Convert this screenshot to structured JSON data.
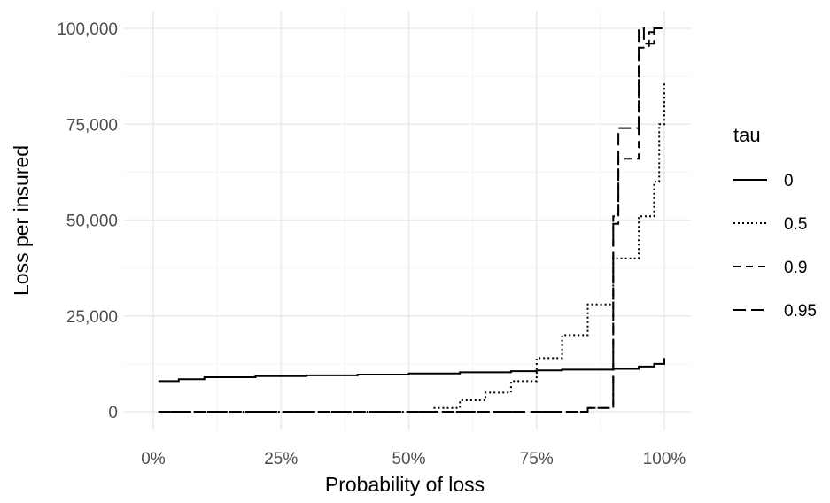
{
  "chart_data": {
    "type": "line",
    "xlabel": "Probability of loss",
    "ylabel": "Loss per insured",
    "x_ticks": [
      "0%",
      "25%",
      "50%",
      "75%",
      "100%"
    ],
    "x_tick_values": [
      0,
      0.25,
      0.5,
      0.75,
      1.0
    ],
    "y_ticks": [
      "0",
      "25,000",
      "50,000",
      "75,000",
      "100,000"
    ],
    "y_tick_values": [
      0,
      25000,
      50000,
      75000,
      100000
    ],
    "xlim": [
      0,
      1.0
    ],
    "ylim": [
      0,
      100000
    ],
    "grid": true,
    "step": true,
    "legend": {
      "title": "tau",
      "position": "right"
    },
    "series": [
      {
        "name": "0",
        "linetype": "solid",
        "x": [
          0.01,
          0.05,
          0.1,
          0.2,
          0.3,
          0.4,
          0.5,
          0.6,
          0.7,
          0.75,
          0.8,
          0.9,
          0.95,
          0.98,
          1.0
        ],
        "y": [
          8000,
          8500,
          9000,
          9300,
          9500,
          9700,
          10000,
          10300,
          10600,
          10800,
          11000,
          11200,
          11800,
          12500,
          14000
        ]
      },
      {
        "name": "0.5",
        "linetype": "dotted",
        "x": [
          0.01,
          0.55,
          0.6,
          0.65,
          0.7,
          0.75,
          0.8,
          0.85,
          0.9,
          0.95,
          0.98,
          0.99,
          1.0
        ],
        "y": [
          0,
          1000,
          3000,
          5000,
          8000,
          14000,
          20000,
          28000,
          40000,
          51000,
          60000,
          75000,
          86000
        ]
      },
      {
        "name": "0.9",
        "linetype": "dashed",
        "x": [
          0.01,
          0.85,
          0.9,
          0.91,
          0.95,
          0.97,
          0.98,
          1.0
        ],
        "y": [
          0,
          1000,
          51000,
          66000,
          95000,
          99000,
          100000,
          100000
        ]
      },
      {
        "name": "0.95",
        "linetype": "longdash",
        "x": [
          0.01,
          0.85,
          0.9,
          0.91,
          0.95,
          0.96,
          0.98,
          1.0
        ],
        "y": [
          0,
          1000,
          49000,
          74000,
          100000,
          96000,
          100000,
          100000
        ]
      }
    ]
  }
}
